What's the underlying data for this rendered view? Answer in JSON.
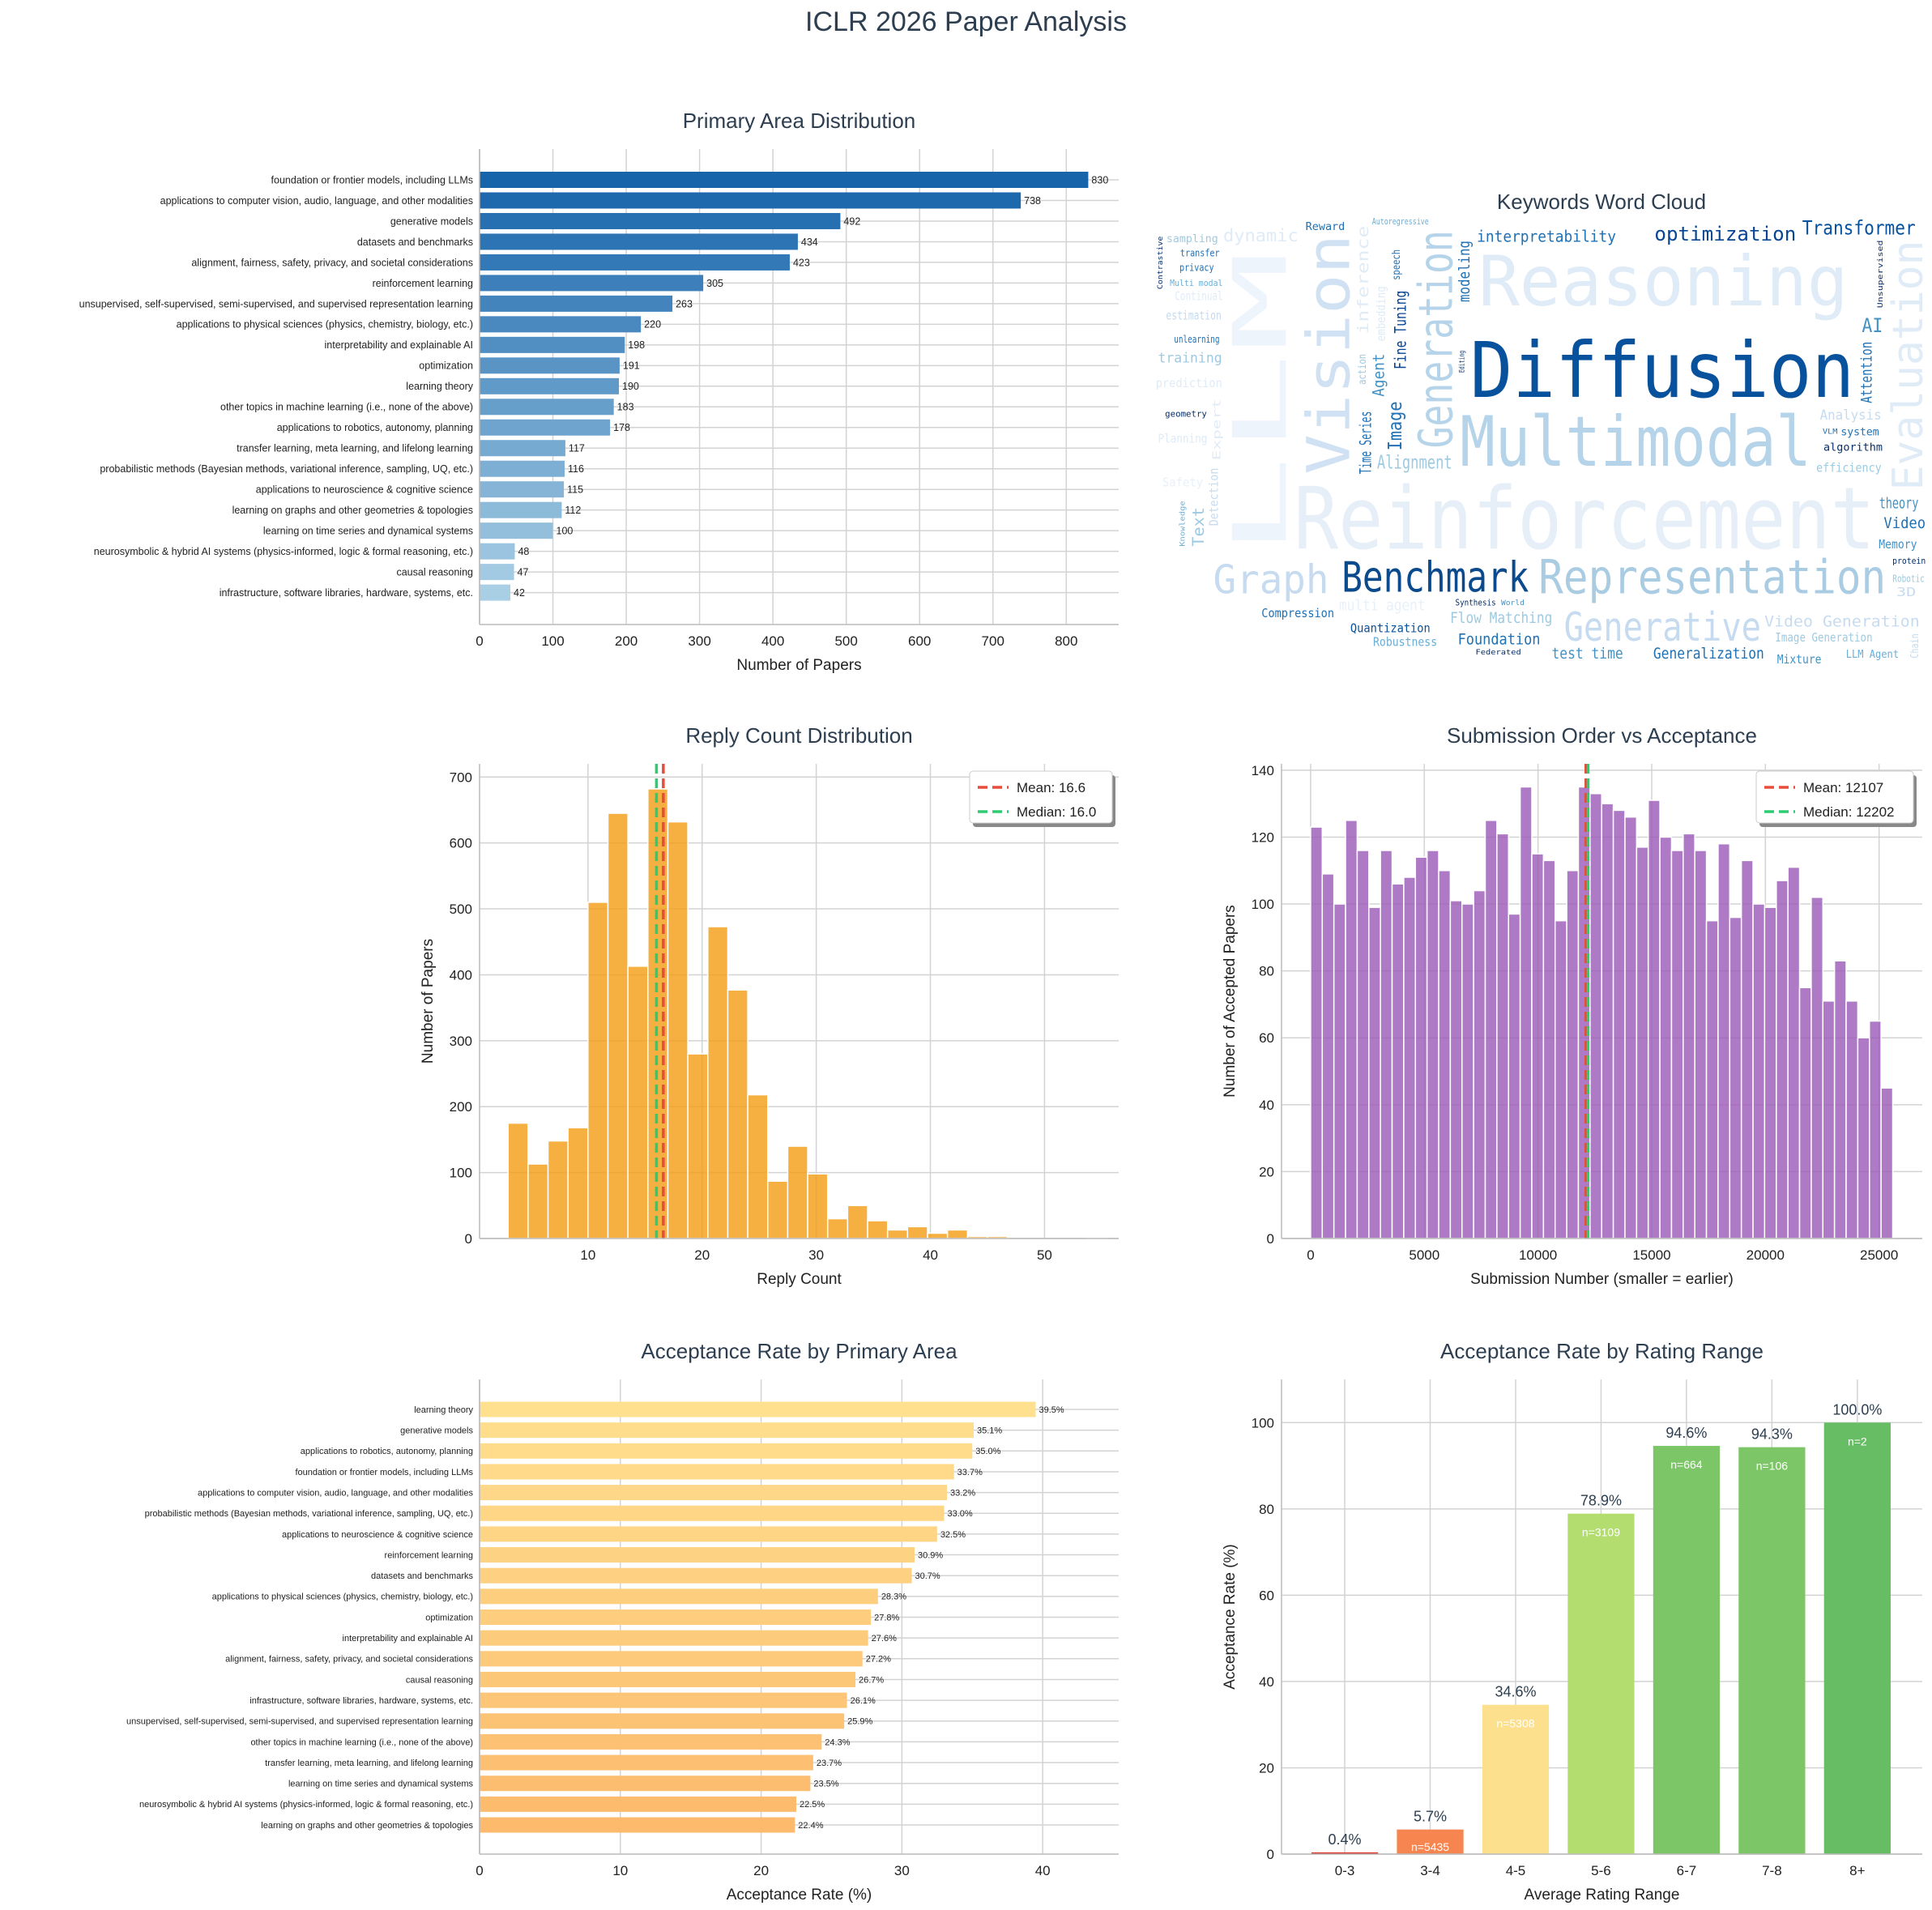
{
  "title": "ICLR 2026 Paper Analysis",
  "word_cloud": {
    "title": "Keywords Word Cloud",
    "words": [
      "Reinforcement",
      "LLM",
      "Reasoning",
      "Vision",
      "Generation",
      "Evaluation",
      "Multimodal",
      "Generative",
      "Graph",
      "Representation",
      "Diffusion",
      "Benchmark",
      "Transformer",
      "optimization",
      "interpretability",
      "Alignment",
      "Video Generation",
      "Generalization",
      "Memory",
      "AI",
      "Flow Matching",
      "theory",
      "Robotic",
      "Image Generation",
      "Mixture",
      "privacy",
      "Reward",
      "Autoregressive",
      "sampling",
      "Quantization",
      "Analysis",
      "estimation",
      "Continual",
      "training",
      "transfer",
      "unlearning",
      "prediction",
      "dynamic",
      "geometry",
      "Multi modal",
      "Compression",
      "Planning",
      "multi agent",
      "Safety",
      "Image",
      "Time Series",
      "Agent",
      "Fine Tuning",
      "modeling",
      "speech",
      "Synthesis",
      "Robustness",
      "Foundation",
      "test time",
      "algorithm",
      "Video",
      "efficiency",
      "Attention",
      "LLM Agent",
      "VLM",
      "system",
      "Federated",
      "World",
      "3D",
      "Text",
      "protein",
      "Contrastive",
      "Unsupervised",
      "Detection",
      "embedding",
      "Chain",
      "Knowledge",
      "Editing",
      "inference",
      "Expert",
      "action"
    ]
  },
  "chart_data": [
    {
      "type": "bar",
      "orientation": "horizontal",
      "title": "Primary Area Distribution",
      "xlabel": "Number of Papers",
      "ylabel": "",
      "categories": [
        "foundation or frontier models, including LLMs",
        "applications to computer vision, audio, language, and other modalities",
        "generative models",
        "datasets and benchmarks",
        "alignment, fairness, safety, privacy, and societal considerations",
        "reinforcement learning",
        "unsupervised, self-supervised, semi-supervised, and supervised representation learning",
        "applications to physical sciences (physics, chemistry, biology, etc.)",
        "interpretability and explainable AI",
        "optimization",
        "learning theory",
        "other topics in machine learning (i.e., none of the above)",
        "applications to robotics, autonomy, planning",
        "transfer learning, meta learning, and lifelong learning",
        "probabilistic methods (Bayesian methods, variational inference, sampling, UQ, etc.)",
        "applications to neuroscience & cognitive science",
        "learning on graphs and other geometries & topologies",
        "learning on time series and dynamical systems",
        "neurosymbolic & hybrid AI systems (physics-informed, logic & formal reasoning, etc.)",
        "causal reasoning",
        "infrastructure, software libraries, hardware, systems, etc."
      ],
      "values": [
        830,
        738,
        492,
        434,
        423,
        305,
        263,
        220,
        198,
        191,
        190,
        183,
        178,
        117,
        116,
        115,
        112,
        100,
        48,
        47,
        42
      ],
      "xlim": [
        0,
        871.5
      ],
      "xticks": [
        0,
        100,
        200,
        300,
        400,
        500,
        600,
        700,
        800
      ],
      "grid": true,
      "colors": [
        "#1764ab",
        "#a9cfe5"
      ]
    },
    {
      "type": "bar",
      "subtype": "histogram",
      "title": "Reply Count Distribution",
      "xlabel": "Reply Count",
      "ylabel": "Number of Papers",
      "bin_start": 3,
      "bin_width": 1.75,
      "values": [
        175,
        113,
        148,
        168,
        510,
        645,
        413,
        682,
        632,
        280,
        473,
        377,
        218,
        87,
        140,
        98,
        30,
        50,
        27,
        13,
        18,
        8,
        13,
        3,
        3,
        0,
        0,
        0,
        0,
        1
      ],
      "xlim": [
        0.5,
        56.5
      ],
      "ylim": [
        0,
        720
      ],
      "xticks": [
        10,
        20,
        30,
        40,
        50
      ],
      "yticks": [
        0,
        100,
        200,
        300,
        400,
        500,
        600,
        700
      ],
      "grid": true,
      "color": "#f39c12",
      "reference_lines": [
        {
          "label": "Mean: 16.6",
          "value": 16.6,
          "color": "#e74c3c"
        },
        {
          "label": "Median: 16.0",
          "value": 16.0,
          "color": "#2ecc71"
        }
      ],
      "legend": "top-right"
    },
    {
      "type": "bar",
      "subtype": "histogram",
      "title": "Submission Order vs Acceptance",
      "xlabel": "Submission Number (smaller = earlier)",
      "ylabel": "Number of Accepted Papers",
      "bin_start": 0,
      "bin_width": 512,
      "values": [
        123,
        109,
        100,
        125,
        116,
        99,
        116,
        106,
        108,
        114,
        116,
        110,
        101,
        100,
        104,
        125,
        121,
        97,
        135,
        115,
        113,
        95,
        110,
        135,
        133,
        130,
        128,
        126,
        117,
        131,
        120,
        116,
        121,
        116,
        95,
        118,
        96,
        113,
        100,
        99,
        107,
        111,
        75,
        102,
        71,
        83,
        71,
        60,
        65,
        45
      ],
      "xlim": [
        -1280,
        26900
      ],
      "ylim": [
        0,
        141.9
      ],
      "xticks": [
        0,
        5000,
        10000,
        15000,
        20000,
        25000
      ],
      "yticks": [
        0,
        20,
        40,
        60,
        80,
        100,
        120,
        140
      ],
      "grid": true,
      "color": "#9b59b6",
      "reference_lines": [
        {
          "label": "Mean: 12107",
          "value": 12107,
          "color": "#e74c3c"
        },
        {
          "label": "Median: 12202",
          "value": 12202,
          "color": "#2ecc71"
        }
      ],
      "legend": "top-right"
    },
    {
      "type": "bar",
      "orientation": "horizontal",
      "title": "Acceptance Rate by Primary Area",
      "xlabel": "Acceptance Rate (%)",
      "ylabel": "",
      "categories": [
        "learning theory",
        "generative models",
        "applications to robotics, autonomy, planning",
        "foundation or frontier models, including LLMs",
        "applications to computer vision, audio, language, and other modalities",
        "probabilistic methods (Bayesian methods, variational inference, sampling, UQ, etc.)",
        "applications to neuroscience & cognitive science",
        "reinforcement learning",
        "datasets and benchmarks",
        "applications to physical sciences (physics, chemistry, biology, etc.)",
        "optimization",
        "interpretability and explainable AI",
        "alignment, fairness, safety, privacy, and societal considerations",
        "causal reasoning",
        "infrastructure, software libraries, hardware, systems, etc.",
        "unsupervised, self-supervised, semi-supervised, and supervised representation learning",
        "other topics in machine learning (i.e., none of the above)",
        "transfer learning, meta learning, and lifelong learning",
        "learning on time series and dynamical systems",
        "neurosymbolic & hybrid AI systems (physics-informed, logic & formal reasoning, etc.)",
        "learning on graphs and other geometries & topologies"
      ],
      "values": [
        39.5,
        35.1,
        35.0,
        33.7,
        33.2,
        33.0,
        32.5,
        30.9,
        30.7,
        28.3,
        27.8,
        27.6,
        27.2,
        26.7,
        26.1,
        25.9,
        24.3,
        23.7,
        23.5,
        22.5,
        22.4
      ],
      "value_labels": [
        "39.5%",
        "35.1%",
        "35.0%",
        "33.7%",
        "33.2%",
        "33.0%",
        "32.5%",
        "30.9%",
        "30.7%",
        "28.3%",
        "27.8%",
        "27.6%",
        "27.2%",
        "26.7%",
        "26.1%",
        "25.9%",
        "24.3%",
        "23.7%",
        "23.5%",
        "22.5%",
        "22.4%"
      ],
      "xlim": [
        0,
        45.4
      ],
      "xticks": [
        0,
        10,
        20,
        30,
        40
      ],
      "grid": true,
      "colors": [
        "#fee08f",
        "#fdb96c"
      ]
    },
    {
      "type": "bar",
      "title": "Acceptance Rate by Rating Range",
      "xlabel": "Average Rating Range",
      "ylabel": "Acceptance Rate (%)",
      "categories": [
        "0-3",
        "3-4",
        "4-5",
        "5-6",
        "6-7",
        "7-8",
        "8+"
      ],
      "values": [
        0.4,
        5.7,
        34.6,
        78.9,
        94.6,
        94.3,
        100.0
      ],
      "value_labels": [
        "0.4%",
        "5.7%",
        "34.6%",
        "78.9%",
        "94.6%",
        "94.3%",
        "100.0%"
      ],
      "count_labels": [
        "",
        "n=5435",
        "n=5308",
        "n=3109",
        "n=664",
        "n=106",
        "n=2"
      ],
      "ylim": [
        0,
        110
      ],
      "yticks": [
        0,
        20,
        40,
        60,
        80,
        100
      ],
      "grid": true,
      "colors": [
        "#d73027",
        "#f68550",
        "#fce08d",
        "#b4dd70",
        "#7cc668",
        "#7cc668",
        "#66bd63"
      ]
    }
  ]
}
